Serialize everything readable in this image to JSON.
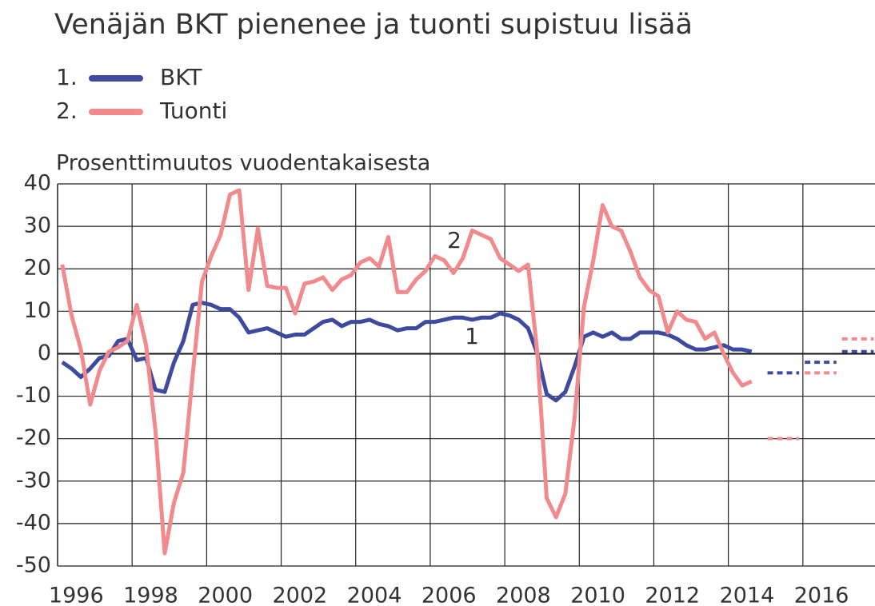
{
  "chart_data": {
    "type": "line",
    "title": "Venäjän BKT pienenee ja tuonti supistuu lisää",
    "y_label": "Prosenttimuutos vuodentakaisesta",
    "x": [
      1996.125,
      1996.375,
      1996.625,
      1996.875,
      1997.125,
      1997.375,
      1997.625,
      1997.875,
      1998.125,
      1998.375,
      1998.625,
      1998.875,
      1999.125,
      1999.375,
      1999.625,
      1999.875,
      2000.125,
      2000.375,
      2000.625,
      2000.875,
      2001.125,
      2001.375,
      2001.625,
      2001.875,
      2002.125,
      2002.375,
      2002.625,
      2002.875,
      2003.125,
      2003.375,
      2003.625,
      2003.875,
      2004.125,
      2004.375,
      2004.625,
      2004.875,
      2005.125,
      2005.375,
      2005.625,
      2005.875,
      2006.125,
      2006.375,
      2006.625,
      2006.875,
      2007.125,
      2007.375,
      2007.625,
      2007.875,
      2008.125,
      2008.375,
      2008.625,
      2008.875,
      2009.125,
      2009.375,
      2009.625,
      2009.875,
      2010.125,
      2010.375,
      2010.625,
      2010.875,
      2011.125,
      2011.375,
      2011.625,
      2011.875,
      2012.125,
      2012.375,
      2012.625,
      2012.875,
      2013.125,
      2013.375,
      2013.625,
      2013.875,
      2014.125,
      2014.375,
      2014.625
    ],
    "series": [
      {
        "name": "BKT",
        "number": "1.",
        "label": "1",
        "color": "#3d4a9e",
        "values": [
          -2,
          -3.5,
          -5.5,
          -3.5,
          -1,
          -0.5,
          3,
          3.5,
          -1.5,
          -1,
          -8.5,
          -9,
          -2,
          3,
          11.5,
          12,
          11.5,
          10.5,
          10.5,
          8.5,
          5,
          5.5,
          6,
          5,
          4,
          4.5,
          4.5,
          6,
          7.5,
          8,
          6.5,
          7.5,
          7.5,
          8,
          7,
          6.5,
          5.5,
          6,
          6,
          7.5,
          7.5,
          8,
          8.5,
          8.5,
          8,
          8.5,
          8.5,
          9.5,
          9,
          8,
          6,
          0,
          -9.5,
          -11,
          -9,
          -3,
          4,
          5,
          4,
          5,
          3.5,
          3.5,
          5,
          5,
          5,
          4.5,
          3.5,
          2,
          1,
          1,
          1.5,
          2,
          1,
          1,
          0.5
        ],
        "forecast_years": [
          2015,
          2016,
          2017
        ],
        "forecast_values": [
          -4.5,
          -2,
          0.5
        ]
      },
      {
        "name": "Tuonti",
        "number": "2.",
        "label": "2",
        "color": "#f08a8d",
        "values": [
          21,
          9,
          1,
          -12,
          -4,
          0.5,
          1.5,
          3,
          11.5,
          2,
          -18,
          -47,
          -35,
          -28,
          -5,
          17,
          23,
          28,
          37.5,
          38.5,
          15,
          29.5,
          16,
          15.5,
          15.5,
          9.5,
          16.5,
          17,
          18,
          15,
          17.5,
          18.5,
          21.5,
          22.5,
          20.5,
          27.5,
          14.5,
          14.5,
          17.5,
          19.5,
          23,
          22,
          19,
          22.5,
          29,
          28,
          27,
          22.5,
          21,
          19.5,
          21,
          0,
          -34,
          -38.5,
          -33,
          -15,
          11,
          22,
          35,
          30,
          29,
          24,
          18,
          15,
          13.5,
          5,
          10,
          8,
          7.5,
          3.5,
          5,
          0,
          -4.5,
          -7.5,
          -6.5
        ],
        "forecast_years": [
          2015,
          2016,
          2017
        ],
        "forecast_values": [
          -20,
          -4.5,
          3.5
        ]
      }
    ],
    "xlim": [
      1996,
      2018
    ],
    "xticks": [
      1996,
      1998,
      2000,
      2002,
      2004,
      2006,
      2008,
      2010,
      2012,
      2014,
      2016
    ],
    "ylim": [
      -50,
      40
    ],
    "yticks": [
      -50,
      -40,
      -30,
      -20,
      -10,
      0,
      10,
      20,
      30,
      40
    ],
    "grid": true
  }
}
